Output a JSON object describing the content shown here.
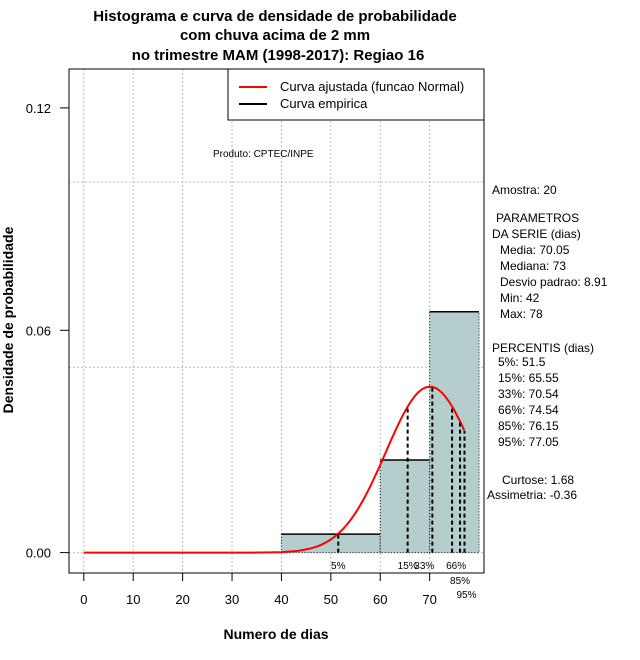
{
  "chart_data": {
    "type": "bar",
    "title": [
      "Histograma e curva de densidade de probabilidade",
      "com chuva acima de 2 mm",
      "no trimestre MAM (1998-2017): Regiao 16"
    ],
    "xlabel": "Numero de dias",
    "ylabel": "Densidade de probabilidade",
    "xlim": [
      -3,
      81
    ],
    "ylim": [
      -0.0055,
      0.1305
    ],
    "xticks": [
      0,
      10,
      20,
      30,
      40,
      50,
      60,
      70
    ],
    "xtick_labels": [
      "0",
      "10",
      "20",
      "30",
      "40",
      "50",
      "60",
      "70"
    ],
    "yticks": [
      0,
      0.06,
      0.12
    ],
    "ytick_labels": [
      "0.00",
      "0.06",
      "0.12"
    ],
    "grid_x": [
      0,
      10,
      20,
      30,
      40,
      50,
      60,
      70
    ],
    "grid_y": [
      0,
      0.05,
      0.1
    ],
    "bins": [
      {
        "from": 40,
        "to": 60,
        "density": 0.005
      },
      {
        "from": 60,
        "to": 70,
        "density": 0.025
      },
      {
        "from": 70,
        "to": 80,
        "density": 0.065
      }
    ],
    "normal_fit": {
      "mean": 70.05,
      "sd": 8.91,
      "x_range": [
        0,
        77
      ]
    },
    "percentiles": [
      {
        "label": "5%",
        "value": 51.5
      },
      {
        "label": "15%",
        "value": 65.55
      },
      {
        "label": "33%",
        "value": 70.54
      },
      {
        "label": "66%",
        "value": 74.54
      },
      {
        "label": "85%",
        "value": 76.15
      },
      {
        "label": "95%",
        "value": 77.05
      }
    ],
    "legend": {
      "placement": "top-right",
      "entries": [
        {
          "label": "Curva ajustada (funcao Normal)",
          "color": "#ff0000"
        },
        {
          "label": "Curva empirica",
          "color": "#000000"
        }
      ]
    },
    "colors": {
      "bar": "#b4cdcd",
      "curve": "#ff0000",
      "grid": "#bebebe"
    }
  },
  "credit": "Produto: CPTEC/INPE",
  "stats": {
    "amostra": "Amostra: 20",
    "param_title1": "PARAMETROS",
    "param_title2": "DA SERIE (dias)",
    "media": "Media: 70.05",
    "mediana": "Mediana: 73",
    "desvio": "Desvio padrao: 8.91",
    "min": "Min: 42",
    "max": "Max: 78",
    "perc_title": "PERCENTIS (dias)",
    "p5": "5%: 51.5",
    "p15": "15%: 65.55",
    "p33": "33%: 70.54",
    "p66": "66%: 74.54",
    "p85": "85%: 76.15",
    "p95": "95%: 77.05",
    "curtose": "Curtose: 1.68",
    "assimetria": "Assimetria: -0.36"
  }
}
